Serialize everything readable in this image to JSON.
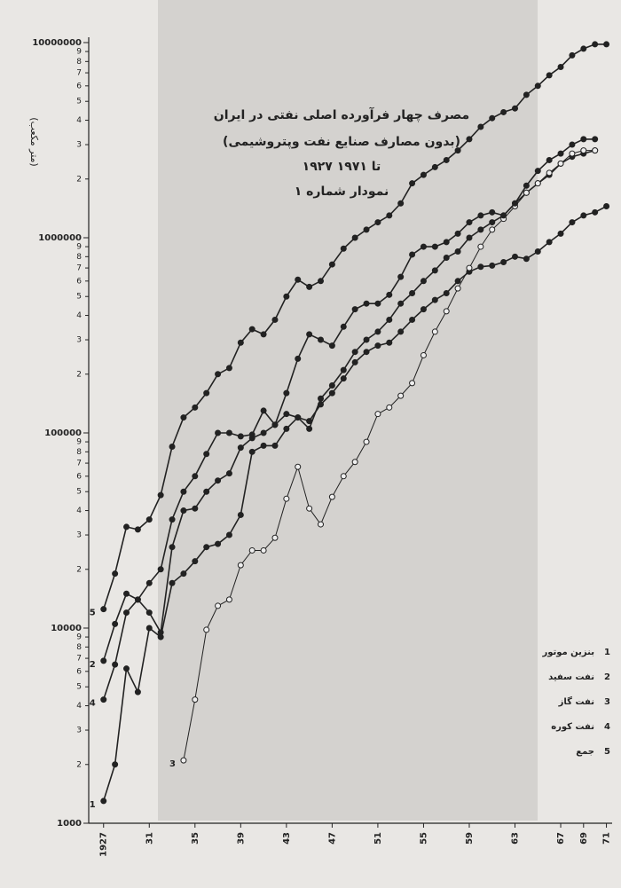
{
  "chart_data": {
    "type": "line",
    "title": "مصرف چهار فرآورده اصلی نفتی در ایران",
    "subtitle": "(بدون مصارف صنایع نفت وپتروشیمی)",
    "period": "۱۹۲۷ تا ۱۹۷۱",
    "figure_label": "نمودار شماره ۱",
    "y_label": "(متر مکعب)",
    "log_y": true,
    "xlim": [
      1925.7,
      1971.5
    ],
    "ylim": [
      1000,
      10000000
    ],
    "xticks": [
      {
        "value": 1927,
        "label": "1927"
      },
      {
        "value": 1931,
        "label": "31"
      },
      {
        "value": 1935,
        "label": "35"
      },
      {
        "value": 1939,
        "label": "39"
      },
      {
        "value": 1943,
        "label": "43"
      },
      {
        "value": 1947,
        "label": "47"
      },
      {
        "value": 1951,
        "label": "51"
      },
      {
        "value": 1955,
        "label": "55"
      },
      {
        "value": 1959,
        "label": "59"
      },
      {
        "value": 1963,
        "label": "63"
      },
      {
        "value": 1967,
        "label": "67"
      },
      {
        "value": 1969,
        "label": "69"
      },
      {
        "value": 1971,
        "label": "71"
      }
    ],
    "yticks": [
      1000,
      {
        "value": 2000,
        "label": "2"
      },
      {
        "value": 3000,
        "label": "3"
      },
      {
        "value": 4000,
        "label": "4"
      },
      {
        "value": 5000,
        "label": "5"
      },
      {
        "value": 6000,
        "label": "6"
      },
      {
        "value": 7000,
        "label": "7"
      },
      {
        "value": 8000,
        "label": "8"
      },
      {
        "value": 9000,
        "label": "9"
      },
      10000,
      {
        "value": 20000,
        "label": "2"
      },
      {
        "value": 30000,
        "label": "3"
      },
      {
        "value": 40000,
        "label": "4"
      },
      {
        "value": 50000,
        "label": "5"
      },
      {
        "value": 60000,
        "label": "6"
      },
      {
        "value": 70000,
        "label": "7"
      },
      {
        "value": 80000,
        "label": "8"
      },
      {
        "value": 90000,
        "label": "9"
      },
      100000,
      {
        "value": 200000,
        "label": "2"
      },
      {
        "value": 300000,
        "label": "3"
      },
      {
        "value": 400000,
        "label": "4"
      },
      {
        "value": 500000,
        "label": "5"
      },
      {
        "value": 600000,
        "label": "6"
      },
      {
        "value": 700000,
        "label": "7"
      },
      {
        "value": 800000,
        "label": "8"
      },
      {
        "value": 900000,
        "label": "9"
      },
      1000000,
      {
        "value": 2000000,
        "label": "2"
      },
      {
        "value": 3000000,
        "label": "3"
      },
      {
        "value": 4000000,
        "label": "4"
      },
      {
        "value": 5000000,
        "label": "5"
      },
      {
        "value": 6000000,
        "label": "6"
      },
      {
        "value": 7000000,
        "label": "7"
      },
      {
        "value": 8000000,
        "label": "8"
      },
      {
        "value": 9000000,
        "label": "9"
      },
      10000000
    ],
    "x": [
      1927,
      1928,
      1929,
      1930,
      1931,
      1932,
      1933,
      1934,
      1935,
      1936,
      1937,
      1938,
      1939,
      1940,
      1941,
      1942,
      1943,
      1944,
      1945,
      1946,
      1947,
      1948,
      1949,
      1950,
      1951,
      1952,
      1953,
      1954,
      1955,
      1956,
      1957,
      1958,
      1959,
      1960,
      1961,
      1962,
      1963,
      1964,
      1965,
      1966,
      1967,
      1968,
      1969,
      1970,
      1971
    ],
    "series": [
      {
        "name": "بنزین موتور",
        "label": "1",
        "color": "#222",
        "marker": "filled",
        "values": [
          1300,
          2000,
          6200,
          4700,
          10000,
          9000,
          17000,
          19000,
          22000,
          26000,
          27000,
          30000,
          38000,
          80000,
          86000,
          86000,
          105000,
          120000,
          115000,
          140000,
          160000,
          190000,
          230000,
          260000,
          280000,
          290000,
          330000,
          380000,
          430000,
          480000,
          520000,
          600000,
          670000,
          710000,
          720000,
          750000,
          800000,
          780000,
          850000,
          950000,
          1050000,
          1200000,
          1300000,
          1350000,
          1450000
        ]
      },
      {
        "name": "نفت سفید",
        "label": "2",
        "color": "#222",
        "marker": "filled",
        "values": [
          6800,
          10500,
          15000,
          14000,
          12000,
          9500,
          26000,
          40000,
          41000,
          50000,
          57000,
          62000,
          84000,
          94000,
          100000,
          110000,
          125000,
          120000,
          105000,
          150000,
          175000,
          210000,
          260000,
          300000,
          330000,
          380000,
          460000,
          520000,
          600000,
          680000,
          790000,
          850000,
          1000000,
          1100000,
          1200000,
          1300000,
          1500000,
          1700000,
          1900000,
          2100000,
          2400000,
          2600000,
          2700000,
          2800000,
          null
        ]
      },
      {
        "name": "نفت گاز",
        "label": "3",
        "color": "#222",
        "marker": "open",
        "values": [
          null,
          null,
          null,
          null,
          null,
          null,
          null,
          2100,
          4300,
          9800,
          13000,
          14000,
          21000,
          25000,
          25000,
          29000,
          46000,
          67000,
          41000,
          34000,
          47000,
          60000,
          71000,
          90000,
          125000,
          135000,
          155000,
          180000,
          250000,
          330000,
          420000,
          550000,
          700000,
          900000,
          1100000,
          1250000,
          1450000,
          1700000,
          1900000,
          2150000,
          2400000,
          2700000,
          2800000,
          2800000,
          null
        ]
      },
      {
        "name": "نفت کوره",
        "label": "4",
        "color": "#222",
        "marker": "filled",
        "values": [
          4300,
          6500,
          12000,
          14000,
          17000,
          20000,
          36000,
          50000,
          60000,
          78000,
          100000,
          100000,
          96000,
          98000,
          130000,
          110000,
          160000,
          240000,
          320000,
          300000,
          280000,
          350000,
          430000,
          460000,
          460000,
          510000,
          630000,
          820000,
          900000,
          900000,
          950000,
          1050000,
          1200000,
          1300000,
          1350000,
          1300000,
          1500000,
          1850000,
          2200000,
          2500000,
          2700000,
          3000000,
          3200000,
          3200000,
          null
        ]
      },
      {
        "name": "جمع",
        "label": "5",
        "color": "#222",
        "marker": "filled",
        "values": [
          12500,
          19000,
          33000,
          32000,
          36000,
          48000,
          85000,
          120000,
          135000,
          160000,
          200000,
          215000,
          290000,
          340000,
          320000,
          380000,
          500000,
          610000,
          560000,
          600000,
          730000,
          880000,
          1000000,
          1100000,
          1200000,
          1300000,
          1500000,
          1900000,
          2100000,
          2300000,
          2500000,
          2800000,
          3200000,
          3700000,
          4100000,
          4400000,
          4600000,
          5400000,
          6000000,
          6800000,
          7500000,
          8600000,
          9300000,
          9800000,
          9800000
        ]
      }
    ]
  }
}
